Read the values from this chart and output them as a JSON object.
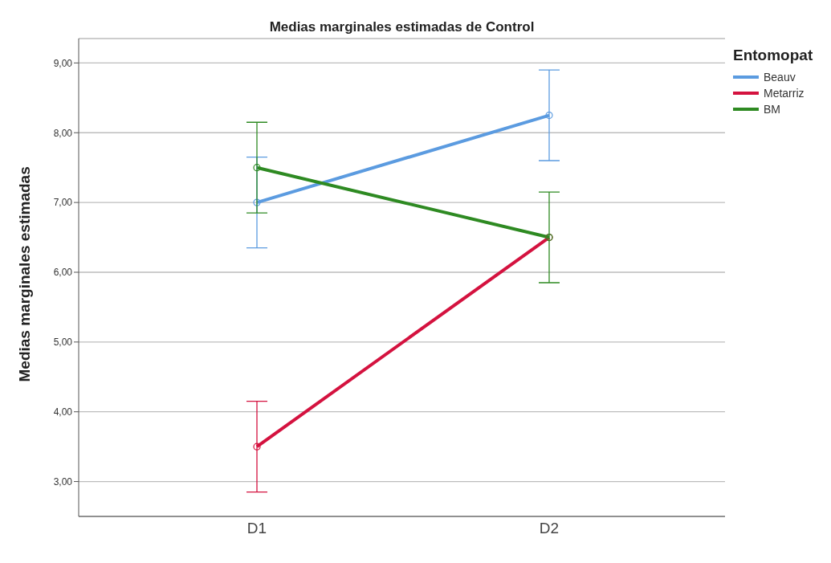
{
  "chart_data": {
    "type": "line",
    "title": "Medias marginales estimadas de Control",
    "ylabel": "Medias marginales estimadas",
    "legend_title": "Entomopat",
    "categories": [
      "D1",
      "D2"
    ],
    "series": [
      {
        "name": "Beauv",
        "color": "#5b9be0",
        "values": [
          7.0,
          8.25
        ],
        "errors": [
          0.65,
          0.65
        ]
      },
      {
        "name": "Metarriz",
        "color": "#d4123f",
        "values": [
          3.5,
          6.5
        ],
        "errors": [
          0.65,
          null
        ]
      },
      {
        "name": "BM",
        "color": "#2e8a22",
        "values": [
          7.5,
          6.5
        ],
        "errors": [
          0.65,
          0.65
        ]
      }
    ],
    "ylim": [
      2.5,
      9.35
    ],
    "yticks": [
      {
        "value": 3,
        "label": "3,00"
      },
      {
        "value": 4,
        "label": "4,00"
      },
      {
        "value": 5,
        "label": "5,00"
      },
      {
        "value": 6,
        "label": "6,00"
      },
      {
        "value": 7,
        "label": "7,00"
      },
      {
        "value": 8,
        "label": "8,00"
      },
      {
        "value": 9,
        "label": "9,00"
      }
    ],
    "grid": "y",
    "legend": "top right",
    "marker": "circle",
    "line_style": "solid"
  }
}
